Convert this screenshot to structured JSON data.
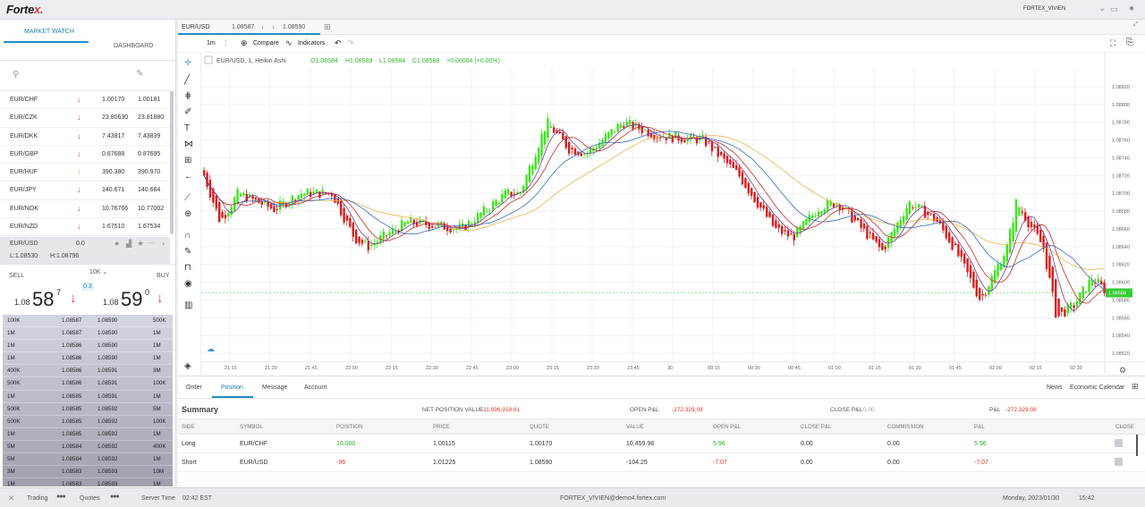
{
  "app": {
    "logo_main": "Forte",
    "logo_accent": "x.",
    "user": "FORTEX_VIVIEN"
  },
  "left": {
    "tabs": [
      "MARKET WATCH",
      "DASHBOARD"
    ],
    "watchlist": [
      {
        "symbol": "EUR/CHF",
        "dir": "down",
        "bid": "1.00170",
        "ask": "1.00181"
      },
      {
        "symbol": "EUR/CZK",
        "dir": "down",
        "bid": "23.80630",
        "ask": "23.81880"
      },
      {
        "symbol": "EUR/DKK",
        "dir": "down",
        "bid": "7.43817",
        "ask": "7.43839"
      },
      {
        "symbol": "EUR/GBP",
        "dir": "down",
        "bid": "0.87688",
        "ask": "0.87695"
      },
      {
        "symbol": "EUR/HUF",
        "dir": "up",
        "bid": "390.380",
        "ask": "390.970"
      },
      {
        "symbol": "EUR/JPY",
        "dir": "down",
        "bid": "140.671",
        "ask": "140.684"
      },
      {
        "symbol": "EUR/NOK",
        "dir": "down",
        "bid": "10.76766",
        "ask": "10.77002"
      },
      {
        "symbol": "EUR/NZD",
        "dir": "down",
        "bid": "1.67510",
        "ask": "1.67534"
      }
    ],
    "selected": {
      "symbol": "EUR/USD",
      "change": "0.0",
      "low": "L:1.08530",
      "high": "H:1.08796"
    },
    "trade": {
      "sell": "SELL",
      "buy": "BUY",
      "size": "10K",
      "spread": "0.3",
      "sell_big": "1.08",
      "sell_pips": "58",
      "sell_frac": "7",
      "buy_big": "1.08",
      "buy_pips": "59",
      "buy_frac": "0"
    },
    "depth": [
      [
        "100K",
        "1.08587",
        "1.08590",
        "500K"
      ],
      [
        "1M",
        "1.08587",
        "1.08590",
        "1M"
      ],
      [
        "1M",
        "1.08586",
        "1.08590",
        "1M"
      ],
      [
        "1M",
        "1.08586",
        "1.08590",
        "1M"
      ],
      [
        "400K",
        "1.08586",
        "1.08591",
        "3M"
      ],
      [
        "500K",
        "1.08586",
        "1.08591",
        "100K"
      ],
      [
        "1M",
        "1.08585",
        "1.08591",
        "1M"
      ],
      [
        "500K",
        "1.08585",
        "1.08592",
        "5M"
      ],
      [
        "500K",
        "1.08585",
        "1.08592",
        "100K"
      ],
      [
        "1M",
        "1.08585",
        "1.08592",
        "1M"
      ],
      [
        "5M",
        "1.08584",
        "1.08592",
        "400K"
      ],
      [
        "5M",
        "1.08584",
        "1.08592",
        "1M"
      ],
      [
        "3M",
        "1.08583",
        "1.08593",
        "10M"
      ],
      [
        "1M",
        "1.08583",
        "1.08593",
        "1M"
      ]
    ]
  },
  "chart": {
    "tab_symbol": "EUR/USD",
    "tab_bid": "1.08587",
    "tab_ask": "1.08590",
    "interval": "1m",
    "compare": "Compare",
    "indicators": "Indicators",
    "legend_symbol": "EUR/USD, 1, Heikin Ashi",
    "ohlc": {
      "o": "O1.08584",
      "h": "H1.08589",
      "l": "L1.08584",
      "c": "C1.08588",
      "chg": "+0.00004 (+0.00%)"
    },
    "price_labels": [
      "1.08820",
      "1.08800",
      "1.08780",
      "1.08760",
      "1.08740",
      "1.08720",
      "1.08700",
      "1.08680",
      "1.08660",
      "1.08640",
      "1.08620",
      "1.08600",
      "1.08580",
      "1.08560",
      "1.08540",
      "1.08520"
    ],
    "current_price": "1.08588",
    "time_labels": [
      "21:15",
      "21:30",
      "21:45",
      "22:00",
      "22:15",
      "22:30",
      "22:45",
      "23:00",
      "23:15",
      "23:30",
      "23:45",
      "30",
      "00:15",
      "00:30",
      "00:45",
      "01:00",
      "01:15",
      "01:30",
      "01:45",
      "02:00",
      "02:15",
      "02:30"
    ],
    "colors": {
      "up": "#3ee51d",
      "down": "#d91c1c",
      "ma_orange": "#f0b24a",
      "ma_blue": "#2f6fc4",
      "ma_red": "#c62a2a",
      "ma_purple": "#7a3a8c",
      "price_line": "#33cc33"
    }
  },
  "bottom": {
    "tabs": [
      "Order",
      "Position",
      "Message",
      "Account"
    ],
    "right_links": [
      "News",
      "Economic Calendar"
    ],
    "summary": {
      "title": "Summary",
      "npv_label": "NET POSITION VALUE",
      "npv": "-11,996,918.61",
      "open_label": "OPEN P&L",
      "open": "-272,329.08",
      "close_label": "CLOSE P&L",
      "close": "0.00",
      "pl_label": "P&L",
      "pl": "-272,329.08"
    },
    "headers": [
      "SIDE",
      "SYMBOL",
      "POSITION",
      "PRICE",
      "QUOTE",
      "VALUE",
      "OPEN P&L",
      "CLOSE P&L",
      "COMMISSION",
      "P&L",
      "CLOSE"
    ],
    "rows": [
      {
        "side": "Long",
        "symbol": "EUR/CHF",
        "position": "10,000",
        "price": "1.00115",
        "quote": "1.00170",
        "value": "10,459.98",
        "open": "5.96",
        "close": "0.00",
        "commission": "0.00",
        "pl": "5.96"
      },
      {
        "side": "Short",
        "symbol": "EUR/USD",
        "position": "-96",
        "price": "1.01225",
        "quote": "1.08590",
        "value": "-104.25",
        "open": "-7.07",
        "close": "0.00",
        "commission": "0.00",
        "pl": "-7.07"
      }
    ]
  },
  "footer": {
    "trading": "Trading",
    "quotes": "Quotes",
    "server_label": "Server Time",
    "server_time": "02:42 EST",
    "account": "FORTEX_VIVIEN@demo4.fortex.com",
    "date": "Monday, 2023/01/30",
    "time": "15:42"
  }
}
